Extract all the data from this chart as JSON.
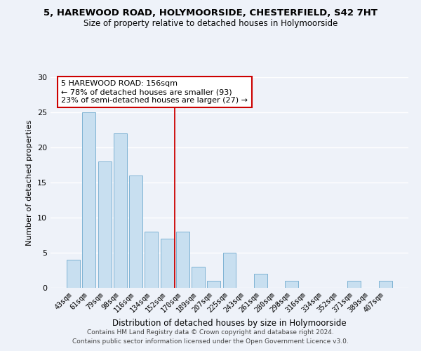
{
  "title": "5, HAREWOOD ROAD, HOLYMOORSIDE, CHESTERFIELD, S42 7HT",
  "subtitle": "Size of property relative to detached houses in Holymoorside",
  "xlabel": "Distribution of detached houses by size in Holymoorside",
  "ylabel": "Number of detached properties",
  "bar_labels": [
    "43sqm",
    "61sqm",
    "79sqm",
    "98sqm",
    "116sqm",
    "134sqm",
    "152sqm",
    "170sqm",
    "189sqm",
    "207sqm",
    "225sqm",
    "243sqm",
    "261sqm",
    "280sqm",
    "298sqm",
    "316sqm",
    "334sqm",
    "352sqm",
    "371sqm",
    "389sqm",
    "407sqm"
  ],
  "bar_values": [
    4,
    25,
    18,
    22,
    16,
    8,
    7,
    8,
    3,
    1,
    5,
    0,
    2,
    0,
    1,
    0,
    0,
    0,
    1,
    0,
    1
  ],
  "bar_color": "#c8dff0",
  "bar_edge_color": "#7fb3d3",
  "background_color": "#eef2f9",
  "grid_color": "#ffffff",
  "vline_x": 6.5,
  "vline_color": "#cc0000",
  "annotation_text": "5 HAREWOOD ROAD: 156sqm\n← 78% of detached houses are smaller (93)\n23% of semi-detached houses are larger (27) →",
  "annotation_box_edge": "#cc0000",
  "footer_line1": "Contains HM Land Registry data © Crown copyright and database right 2024.",
  "footer_line2": "Contains public sector information licensed under the Open Government Licence v3.0.",
  "ylim": [
    0,
    30
  ],
  "yticks": [
    0,
    5,
    10,
    15,
    20,
    25,
    30
  ]
}
